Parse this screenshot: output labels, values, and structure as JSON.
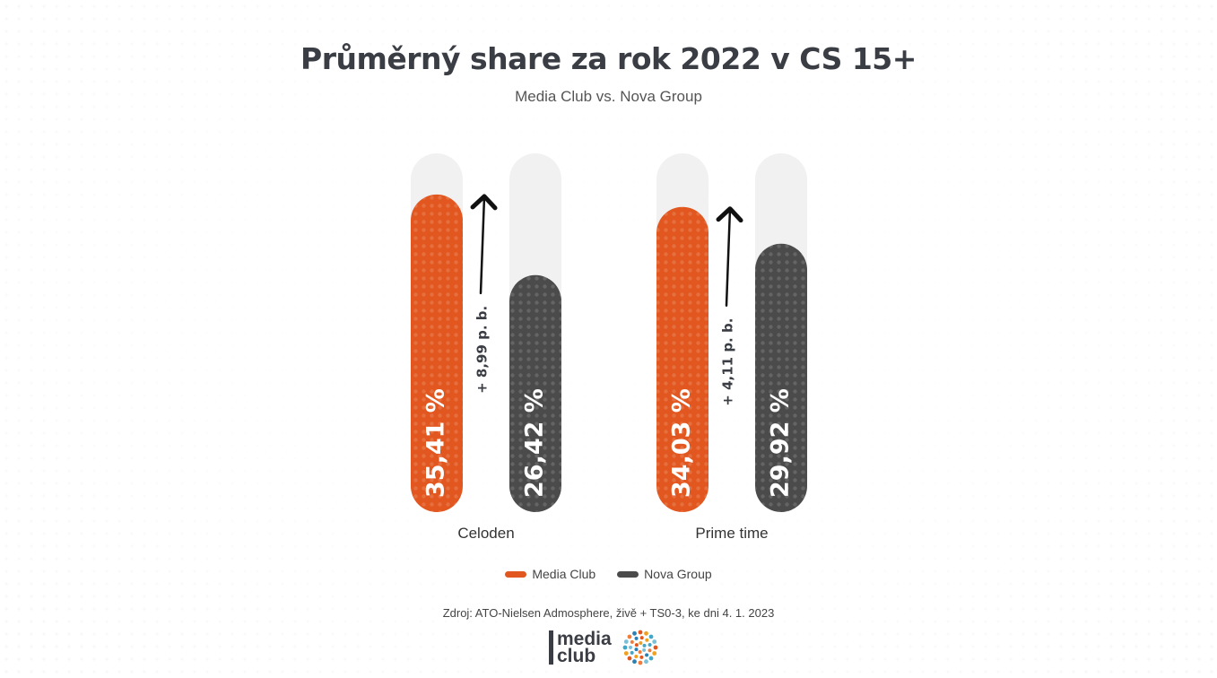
{
  "title": "Průměrný share za rok 2022 v CS 15+",
  "subtitle": "Media Club vs. Nova Group",
  "colors": {
    "media_club": "#e2571f",
    "nova_group": "#4b4b4b",
    "track": "#f1f1f1",
    "text": "#3a3d44"
  },
  "chart_data": {
    "type": "bar",
    "categories": [
      "Celoden",
      "Prime time"
    ],
    "series": [
      {
        "name": "Media Club",
        "values": [
          35.41,
          34.03
        ],
        "labels": [
          "35,41 %",
          "34,03 %"
        ]
      },
      {
        "name": "Nova Group",
        "values": [
          26.42,
          29.92
        ],
        "labels": [
          "26,42 %",
          "29,92 %"
        ]
      }
    ],
    "differences": [
      "+ 8,99 p. b.",
      "+ 4,11 p. b."
    ],
    "ylim": [
      0,
      40
    ],
    "legend_position": "bottom",
    "grid": false
  },
  "legend": [
    {
      "label": "Media Club",
      "color": "#e2571f"
    },
    {
      "label": "Nova Group",
      "color": "#4b4b4b"
    }
  ],
  "source": "Zdroj: ATO-Nielsen Admosphere, živě + TS0-3, ke dni 4. 1. 2023",
  "logo": {
    "line1": "media",
    "line2": "club",
    "icon": "dots-circle-icon"
  }
}
